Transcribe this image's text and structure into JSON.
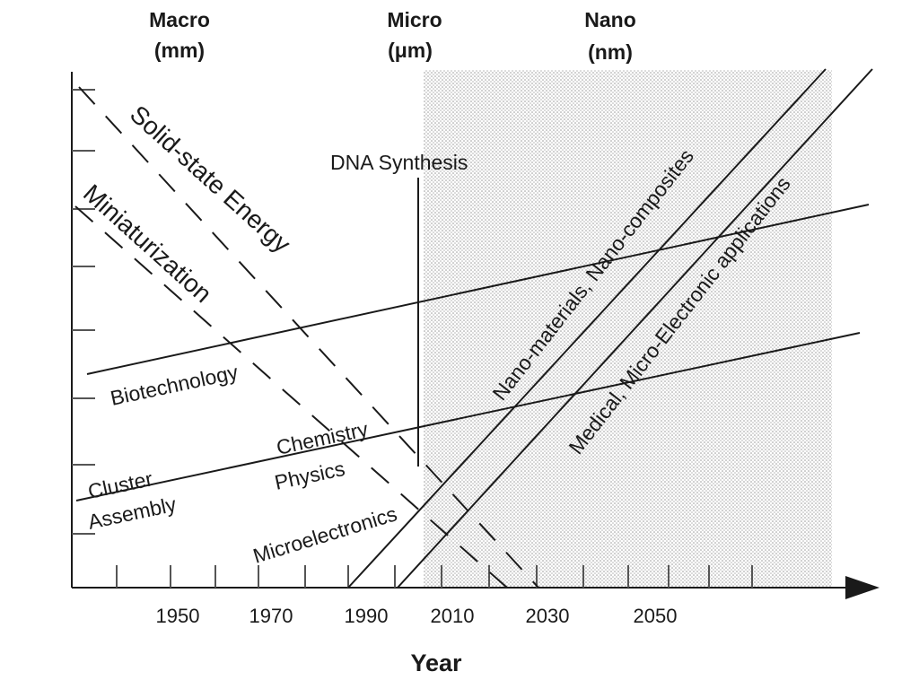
{
  "scale_headers": [
    {
      "line1": "Macro",
      "line2": "(mm)"
    },
    {
      "line1": "Micro",
      "line2": "(μm)"
    },
    {
      "line1": "Nano",
      "line2": "(nm)"
    }
  ],
  "x_axis": {
    "title": "Year",
    "tick_labels": [
      "1950",
      "1970",
      "1990",
      "2010",
      "2030",
      "2050"
    ]
  },
  "labels": {
    "solid_state_energy": "Solid-state Energy",
    "miniaturization": "Miniaturization",
    "dna_synthesis": "DNA Synthesis",
    "biotechnology": "Biotechnology",
    "chemistry": "Chemistry",
    "physics": "Physics",
    "cluster": "Cluster",
    "assembly": "Assembly",
    "microelectronics": "Microelectronics",
    "nano_materials": "Nano-materials, Nano-composites",
    "medical": "Medical, Micro-Electronic applications"
  },
  "colors": {
    "ink": "#1a1a1a",
    "nano_region_dots": "#9a9a9a"
  }
}
